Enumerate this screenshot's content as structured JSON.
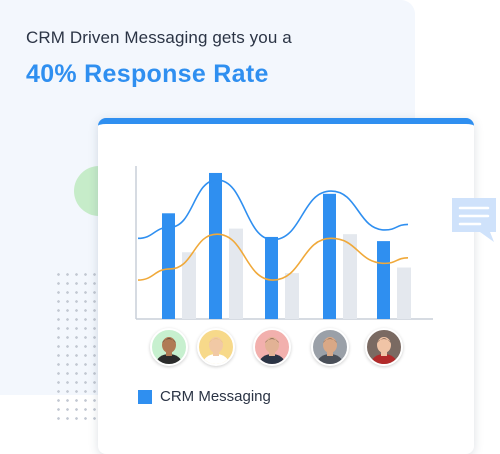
{
  "promo": {
    "headline": "CRM Driven Messaging gets you a",
    "highlight": "40% Response Rate"
  },
  "colors": {
    "accent": "#2f8ff0",
    "line_orange": "#f0a93a",
    "bar_gray": "#e4e8ee",
    "axis": "#c9cfd8"
  },
  "chart_data": {
    "type": "bar",
    "categories": [
      "",
      "",
      "",
      "",
      ""
    ],
    "series": [
      {
        "name": "CRM Messaging",
        "values": [
          76,
          105,
          59,
          90,
          56
        ]
      },
      {
        "name": "",
        "values": [
          48,
          65,
          33,
          61,
          37
        ]
      }
    ],
    "lines": [
      {
        "values": [
          66,
          100,
          57,
          92,
          64
        ],
        "color": "#2f8ff0"
      },
      {
        "values": [
          36,
          61,
          28,
          58,
          40
        ],
        "color": "#f0a93a"
      }
    ],
    "ylim": [
      0,
      110
    ],
    "grid": false,
    "legend": "bottom-left",
    "title": "",
    "xlabel": "",
    "ylabel": ""
  },
  "avatars": [
    {
      "name": "avatar-1",
      "bg": "#c7f0cf",
      "skin": "#b07a55",
      "hair": "#222222",
      "shirt": "#2b2b2b"
    },
    {
      "name": "avatar-2",
      "bg": "#f7d98a",
      "skin": "#f1c9a5",
      "hair": "#e6c06a",
      "shirt": "#ffffff"
    },
    {
      "name": "avatar-3",
      "bg": "#f2b0ad",
      "skin": "#e2b295",
      "hair": "#3a2a22",
      "shirt": "#2b3445"
    },
    {
      "name": "avatar-4",
      "bg": "#9aa0a8",
      "skin": "#d9a886",
      "hair": "#5a4a3e",
      "shirt": "#4a4f58"
    },
    {
      "name": "avatar-5",
      "bg": "#7a6a62",
      "skin": "#f0c4a6",
      "hair": "#2a1a16",
      "shirt": "#b22a2a"
    }
  ],
  "legend": {
    "label": "CRM Messaging"
  },
  "icons": {
    "chat": "chat-bubble-icon"
  }
}
